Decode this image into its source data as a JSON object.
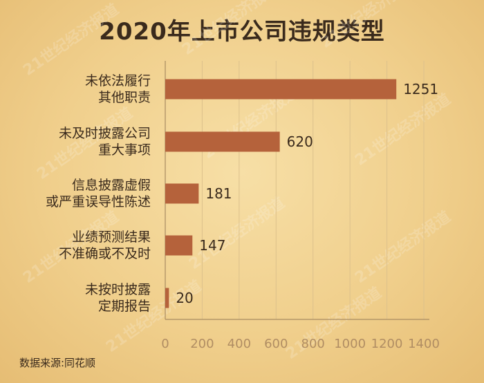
{
  "page": {
    "source": "数据来源:同花顺"
  },
  "chart_data": {
    "type": "bar",
    "orientation": "horizontal",
    "title": "2020年上市公司违规类型",
    "categories": [
      [
        "未依法履行",
        "其他职责"
      ],
      [
        "未及时披露公司",
        "重大事项"
      ],
      [
        "信息披露虚假",
        "或严重误导性陈述"
      ],
      [
        "业绩预测结果",
        "不准确或不及时"
      ],
      [
        "未按时披露",
        "定期报告"
      ]
    ],
    "values": [
      1251,
      620,
      181,
      147,
      20
    ],
    "xlim": [
      0,
      1400
    ],
    "xticks": [
      0,
      200,
      400,
      600,
      800,
      1000,
      1200,
      1400
    ],
    "grid": true,
    "colors": {
      "bar": "#b5623b",
      "grid": "#dcc18c",
      "axis": "#a88b62"
    }
  },
  "watermark": "21世纪经济报道"
}
